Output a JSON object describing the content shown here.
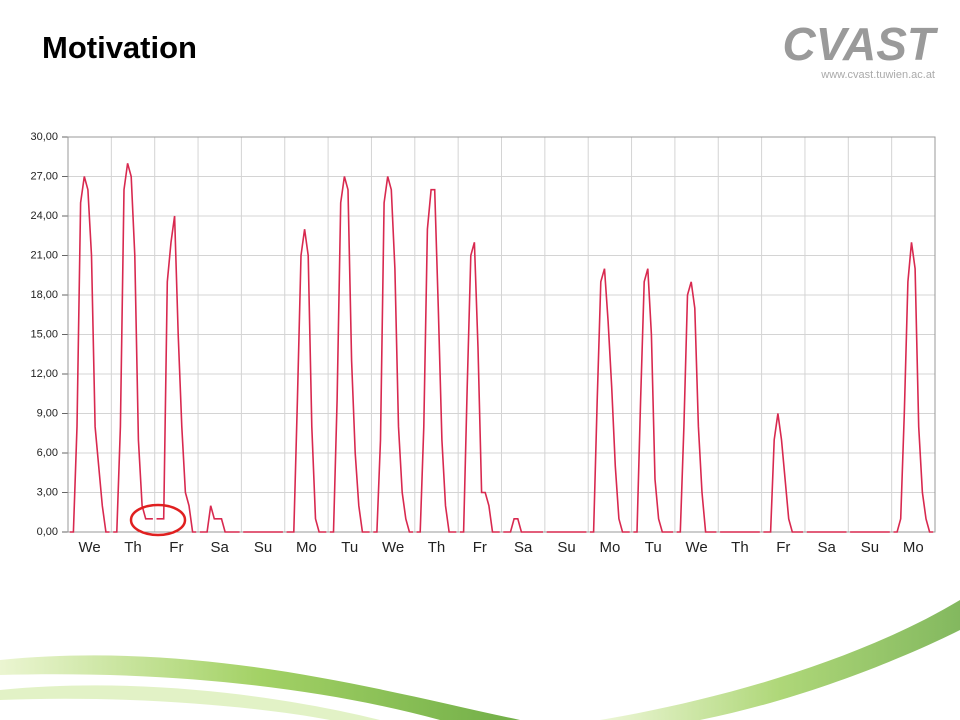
{
  "header": {
    "title": "Motivation",
    "logo": "CVAST",
    "url": "www.cvast.tuwien.ac.at"
  },
  "chart_data": {
    "type": "line",
    "categories": [
      "We",
      "Th",
      "Fr",
      "Sa",
      "Su",
      "Mo",
      "Tu",
      "We",
      "Th",
      "Fr",
      "Sa",
      "Su",
      "Mo",
      "Tu",
      "We",
      "Th",
      "Fr",
      "Sa",
      "Su",
      "Mo"
    ],
    "series": [
      {
        "color": "#d8294f",
        "values": [
          [
            0,
            0,
            8,
            25,
            27,
            26,
            21,
            8,
            5,
            2,
            0,
            0
          ],
          [
            0,
            0,
            8,
            26,
            28,
            27,
            21,
            7,
            2,
            1,
            1,
            1
          ],
          [
            1,
            1,
            1,
            19,
            22,
            24,
            15,
            8,
            3,
            2,
            0,
            0
          ],
          [
            0,
            0,
            0,
            2,
            1,
            1,
            1,
            0,
            0,
            0,
            0,
            0
          ],
          [
            0,
            0,
            0,
            0,
            0,
            0,
            0,
            0,
            0,
            0,
            0,
            0
          ],
          [
            0,
            0,
            0,
            10,
            21,
            23,
            21,
            8,
            1,
            0,
            0,
            0
          ],
          [
            0,
            0,
            10,
            25,
            27,
            26,
            13,
            6,
            2,
            0,
            0,
            0
          ],
          [
            0,
            0,
            7,
            25,
            27,
            26,
            20,
            8,
            3,
            1,
            0,
            0
          ],
          [
            0,
            0,
            8,
            23,
            26,
            26,
            17,
            7,
            2,
            0,
            0,
            0
          ],
          [
            0,
            0,
            11,
            21,
            22,
            14,
            3,
            3,
            2,
            0,
            0,
            0
          ],
          [
            0,
            0,
            0,
            1,
            1,
            0,
            0,
            0,
            0,
            0,
            0,
            0
          ],
          [
            0,
            0,
            0,
            0,
            0,
            0,
            0,
            0,
            0,
            0,
            0,
            0
          ],
          [
            0,
            0,
            10,
            19,
            20,
            16,
            11,
            5,
            1,
            0,
            0,
            0
          ],
          [
            0,
            0,
            10,
            19,
            20,
            15,
            4,
            1,
            0,
            0,
            0,
            0
          ],
          [
            0,
            0,
            8,
            18,
            19,
            17,
            8,
            3,
            0,
            0,
            0,
            0
          ],
          [
            0,
            0,
            0,
            0,
            0,
            0,
            0,
            0,
            0,
            0,
            0,
            0
          ],
          [
            0,
            0,
            0,
            7,
            9,
            7,
            4,
            1,
            0,
            0,
            0,
            0
          ],
          [
            0,
            0,
            0,
            0,
            0,
            0,
            0,
            0,
            0,
            0,
            0,
            0
          ],
          [
            0,
            0,
            0,
            0,
            0,
            0,
            0,
            0,
            0,
            0,
            0,
            0
          ],
          [
            0,
            0,
            1,
            9,
            19,
            22,
            20,
            8,
            3,
            1,
            0,
            0
          ]
        ]
      }
    ],
    "ylim": [
      0,
      30
    ],
    "yticks": [
      {
        "value": 0,
        "label": "0,00"
      },
      {
        "value": 3,
        "label": "3,00"
      },
      {
        "value": 6,
        "label": "6,00"
      },
      {
        "value": 9,
        "label": "9,00"
      },
      {
        "value": 12,
        "label": "12,00"
      },
      {
        "value": 15,
        "label": "15,00"
      },
      {
        "value": 18,
        "label": "18,00"
      },
      {
        "value": 21,
        "label": "21,00"
      },
      {
        "value": 24,
        "label": "24,00"
      },
      {
        "value": 27,
        "label": "27,00"
      },
      {
        "value": 30,
        "label": "30,00"
      }
    ],
    "grid": true
  }
}
